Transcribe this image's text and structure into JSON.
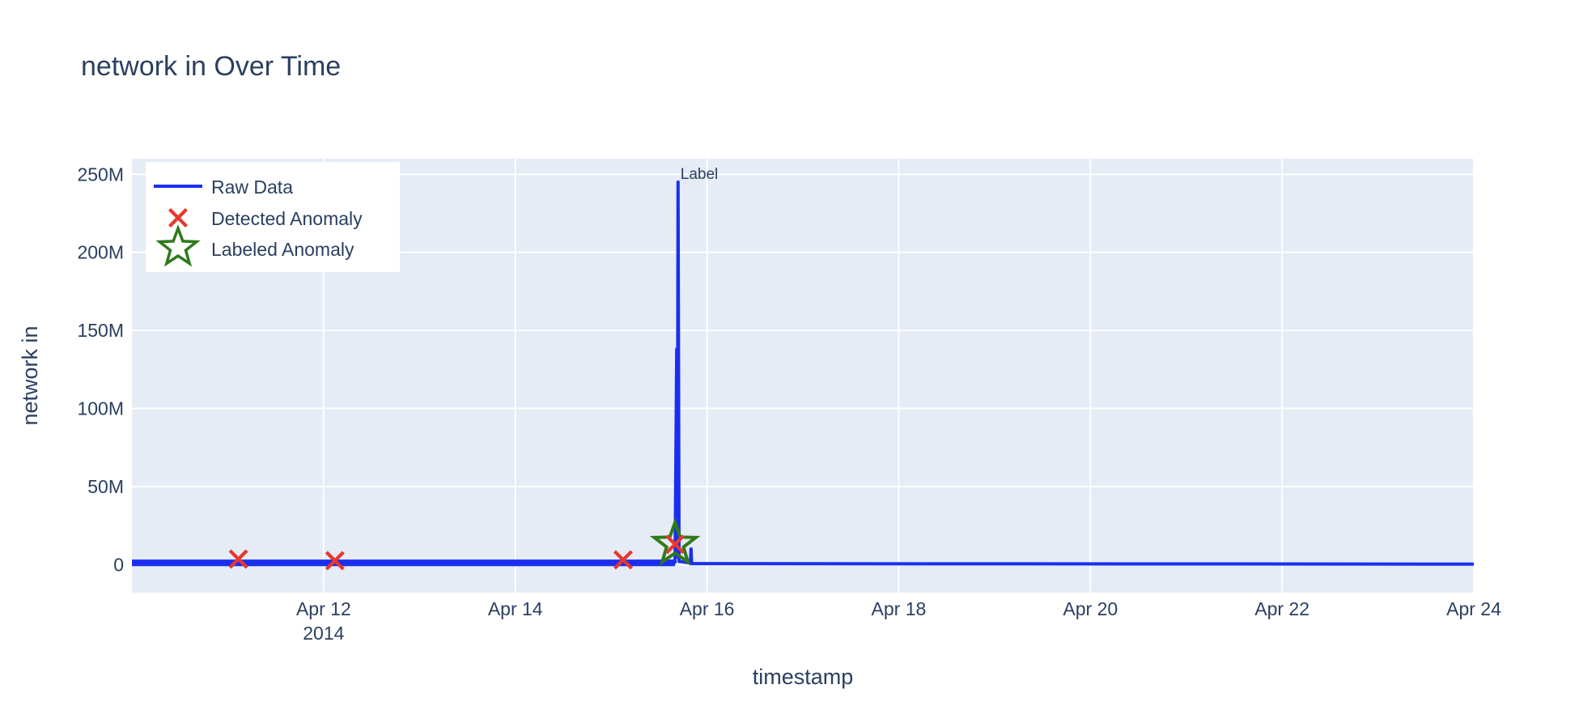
{
  "chart_data": {
    "type": "line",
    "title": "network in Over Time",
    "xlabel": "timestamp",
    "ylabel": "network in",
    "x_range": [
      "2014-04-10T00:00",
      "2014-04-24T00:00"
    ],
    "ylim": [
      -18000000,
      260000000
    ],
    "x_ticks": [
      {
        "value": "2014-04-12",
        "label": "Apr 12",
        "sublabel": "2014"
      },
      {
        "value": "2014-04-14",
        "label": "Apr 14",
        "sublabel": ""
      },
      {
        "value": "2014-04-16",
        "label": "Apr 16",
        "sublabel": ""
      },
      {
        "value": "2014-04-18",
        "label": "Apr 18",
        "sublabel": ""
      },
      {
        "value": "2014-04-20",
        "label": "Apr 20",
        "sublabel": ""
      },
      {
        "value": "2014-04-22",
        "label": "Apr 22",
        "sublabel": ""
      },
      {
        "value": "2014-04-24",
        "label": "Apr 24",
        "sublabel": ""
      }
    ],
    "y_ticks": [
      {
        "value": 0,
        "label": "0"
      },
      {
        "value": 50000000,
        "label": "50M"
      },
      {
        "value": 100000000,
        "label": "100M"
      },
      {
        "value": 150000000,
        "label": "150M"
      },
      {
        "value": 200000000,
        "label": "200M"
      },
      {
        "value": 250000000,
        "label": "250M"
      }
    ],
    "grid": true,
    "legend_position": "top-left",
    "series": [
      {
        "name": "Raw Data",
        "kind": "line",
        "color": "#1b2ef0",
        "points": [
          [
            "2014-04-10T00:00",
            1500000
          ],
          [
            "2014-04-15T16:00",
            1500000
          ],
          [
            "2014-04-15T16:25",
            138000000
          ],
          [
            "2014-04-15T16:35",
            5000000
          ],
          [
            "2014-04-15T16:45",
            245000000
          ],
          [
            "2014-04-15T17:00",
            2000000
          ],
          [
            "2014-04-15T19:50",
            1000000
          ],
          [
            "2014-04-15T20:00",
            10000000
          ],
          [
            "2014-04-15T20:10",
            600000
          ],
          [
            "2014-04-24T00:00",
            300000
          ]
        ]
      },
      {
        "name": "Detected Anomaly",
        "kind": "x-marker",
        "color": "#e8372c",
        "points": [
          [
            "2014-04-11T02:40",
            3500000
          ],
          [
            "2014-04-12T02:50",
            2500000
          ],
          [
            "2014-04-15T03:00",
            3000000
          ],
          [
            "2014-04-15T16:00",
            13000000
          ]
        ]
      },
      {
        "name": "Labeled Anomaly",
        "kind": "star-marker",
        "color": "#2f7a1a",
        "points": [
          [
            "2014-04-15T16:00",
            13000000
          ]
        ]
      }
    ],
    "annotations": [
      {
        "x": "2014-04-15T16:45",
        "y": 250000000,
        "text": "Label"
      }
    ]
  }
}
